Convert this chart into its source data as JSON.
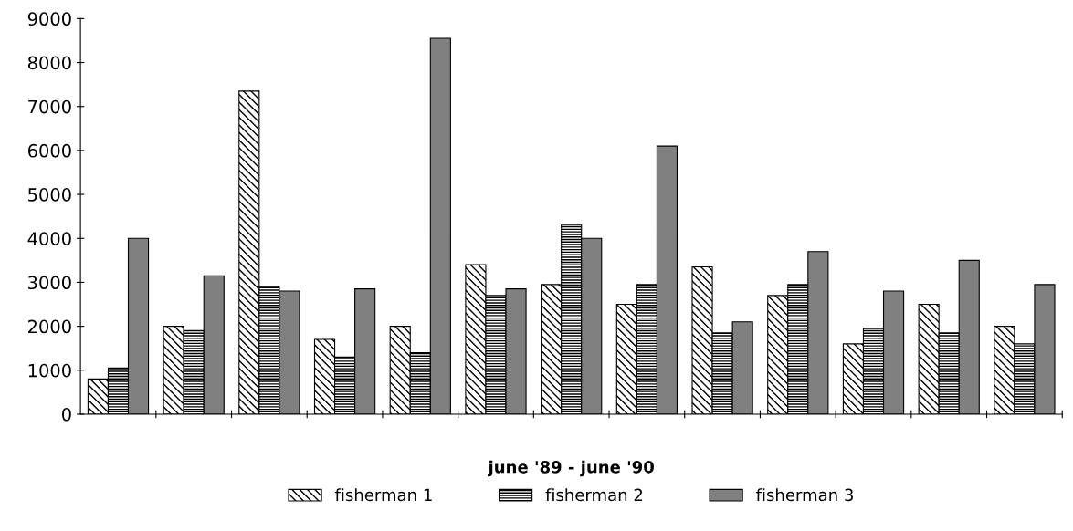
{
  "chart_data": {
    "type": "bar",
    "xlabel": "june '89 - june '90",
    "categories": [
      null,
      null,
      null,
      null,
      null,
      null,
      null,
      null,
      null,
      null,
      null,
      null,
      null
    ],
    "series": [
      {
        "name": "fisherman 1",
        "color": "#000000",
        "values": [
          800,
          2000,
          7350,
          1700,
          2000,
          3400,
          2950,
          2500,
          3350,
          2700,
          1600,
          2500,
          2000
        ]
      },
      {
        "name": "fisherman 2",
        "color": "#000000",
        "values": [
          1050,
          1900,
          2900,
          1300,
          1400,
          2700,
          4300,
          2950,
          1850,
          2950,
          1950,
          1850,
          1600
        ]
      },
      {
        "name": "fisherman 3",
        "color": "#808080",
        "values": [
          4000,
          3150,
          2800,
          2850,
          8550,
          2850,
          4000,
          6100,
          2100,
          3700,
          2800,
          3500,
          2950
        ]
      }
    ],
    "ylim": [
      0,
      9000
    ],
    "yticks": [
      0,
      1000,
      2000,
      3000,
      4000,
      5000,
      6000,
      7000,
      8000,
      9000
    ],
    "grid": false,
    "legend": "bottom"
  }
}
